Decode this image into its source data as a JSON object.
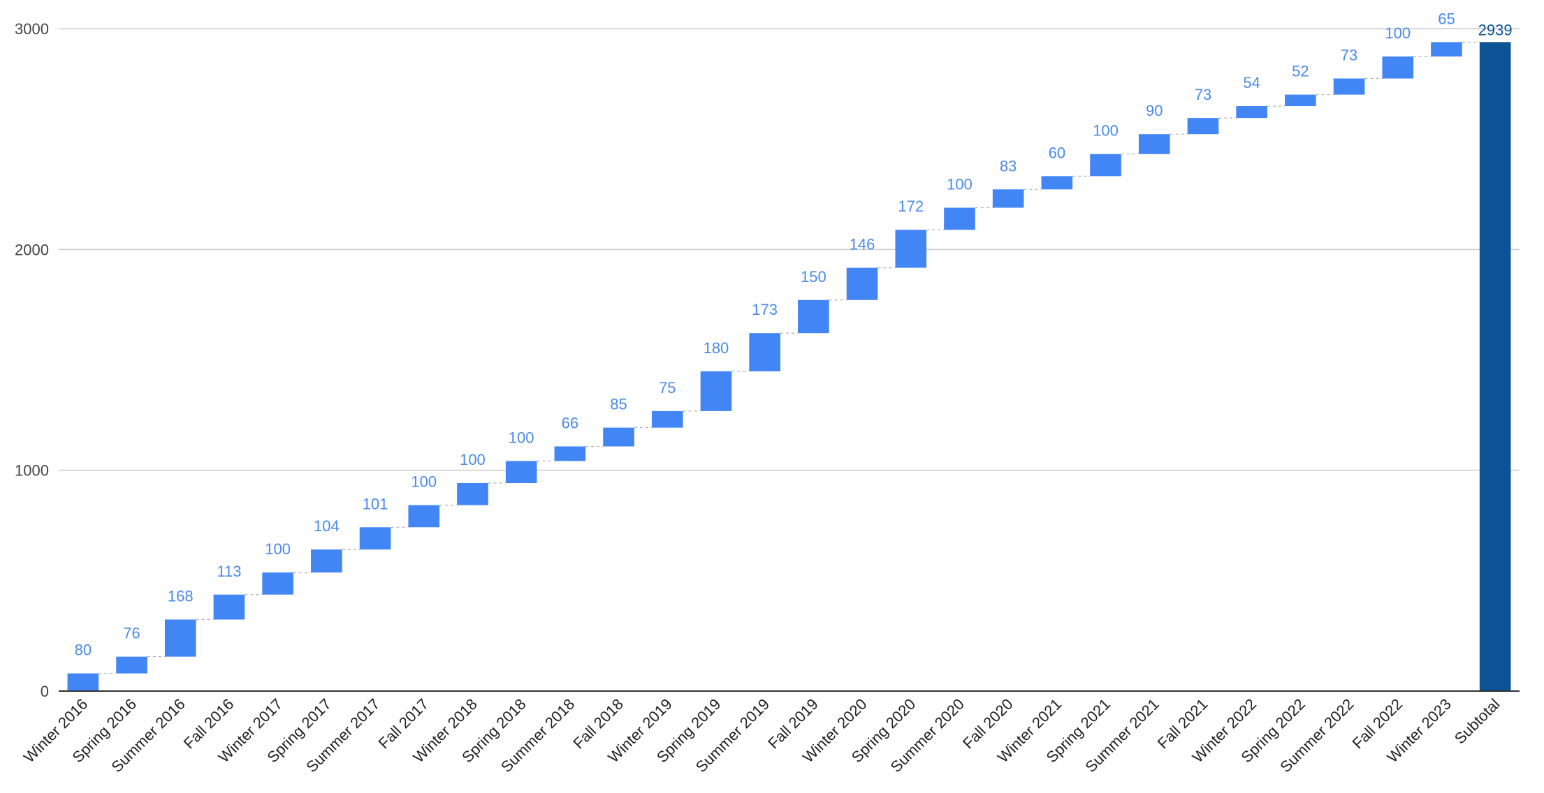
{
  "chart_data": {
    "type": "bar",
    "subtype": "waterfall",
    "title": "",
    "xlabel": "",
    "ylabel": "",
    "ylim": [
      0,
      3000
    ],
    "yticks": [
      0,
      1000,
      2000,
      3000
    ],
    "grid": true,
    "categories": [
      "Winter 2016",
      "Spring 2016",
      "Summer 2016",
      "Fall 2016",
      "Winter 2017",
      "Spring 2017",
      "Summer 2017",
      "Fall 2017",
      "Winter 2018",
      "Spring 2018",
      "Summer 2018",
      "Fall 2018",
      "Winter 2019",
      "Spring 2019",
      "Summer 2019",
      "Fall 2019",
      "Winter 2020",
      "Spring 2020",
      "Summer 2020",
      "Fall 2020",
      "Winter 2021",
      "Spring 2021",
      "Summer 2021",
      "Fall 2021",
      "Winter 2022",
      "Spring 2022",
      "Summer 2022",
      "Fall 2022",
      "Winter 2023"
    ],
    "values": [
      80,
      76,
      168,
      113,
      100,
      104,
      101,
      100,
      100,
      100,
      66,
      85,
      75,
      180,
      173,
      150,
      146,
      172,
      100,
      83,
      60,
      100,
      90,
      73,
      54,
      52,
      73,
      100,
      65
    ],
    "subtotal": {
      "label": "Subtotal",
      "value": 2939
    },
    "colors": {
      "increase": "#4285f4",
      "subtotal": "#0d5294",
      "increase_label": "#4a8ae8",
      "subtotal_label": "#0d5294"
    }
  }
}
